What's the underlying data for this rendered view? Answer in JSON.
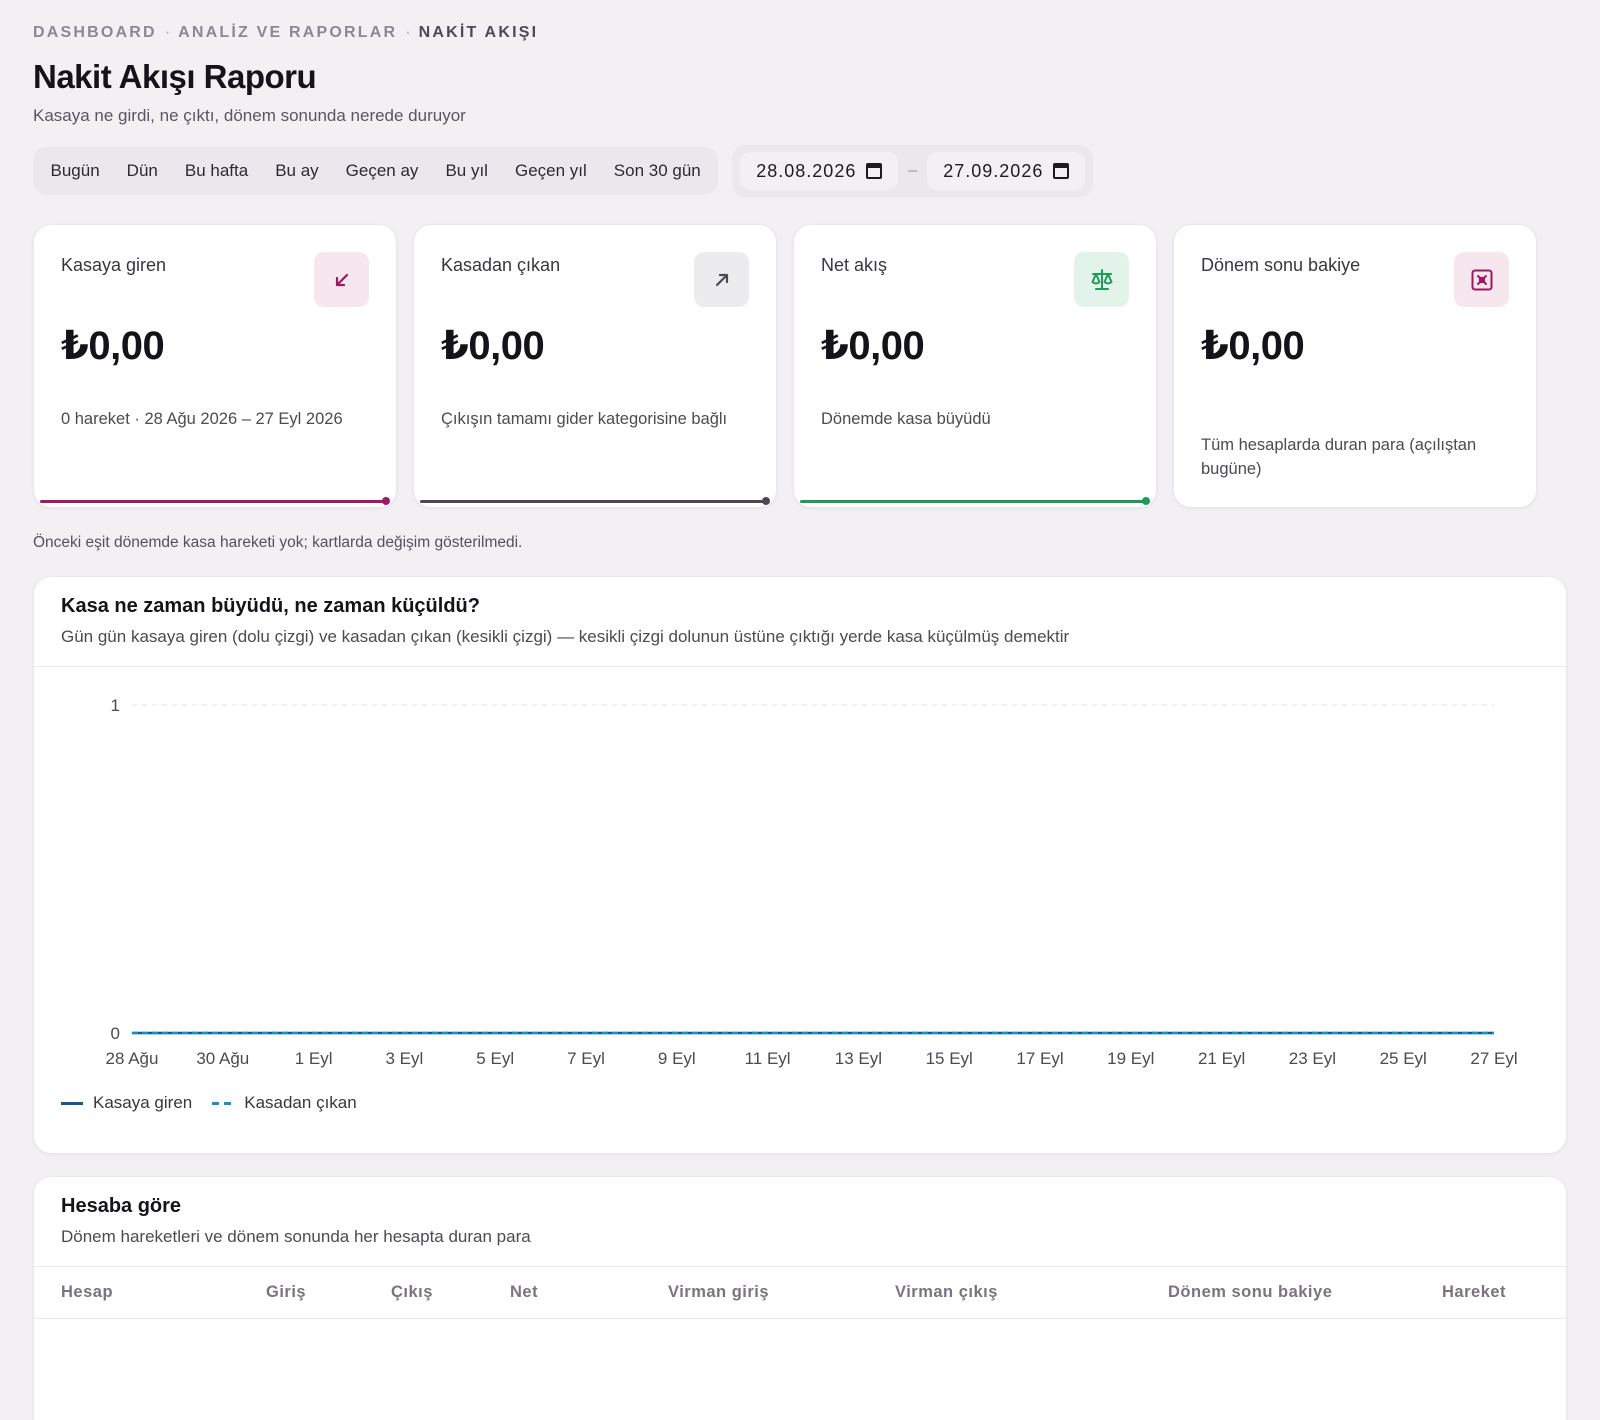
{
  "breadcrumb": [
    "DASHBOARD",
    "ANALİZ VE RAPORLAR",
    "NAKİT AKIŞI"
  ],
  "page": {
    "title": "Nakit Akışı Raporu",
    "subtitle": "Kasaya ne girdi, ne çıktı, dönem sonunda nerede duruyor"
  },
  "presets": [
    "Bugün",
    "Dün",
    "Bu hafta",
    "Bu ay",
    "Geçen ay",
    "Bu yıl",
    "Geçen yıl",
    "Son 30 gün"
  ],
  "date_range": {
    "start": "28.08.2026",
    "separator": "–",
    "end": "27.09.2026"
  },
  "kpis": [
    {
      "label": "Kasaya giren",
      "value": "₺0,00",
      "desc": "0 hareket · 28 Ağu 2026 – 27 Eyl 2026",
      "icon": "arrow-down-left-icon",
      "accent": "#9a1a63",
      "icon_bg": "#f6e7ef"
    },
    {
      "label": "Kasadan çıkan",
      "value": "₺0,00",
      "desc": "Çıkışın tamamı gider kategorisine bağlı",
      "icon": "arrow-up-right-icon",
      "accent": "#4b4753",
      "icon_bg": "#ecebee"
    },
    {
      "label": "Net akış",
      "value": "₺0,00",
      "desc": "Dönemde kasa büyüdü",
      "icon": "scale-icon",
      "accent": "#1f9a5a",
      "icon_bg": "#e2f4ea"
    },
    {
      "label": "Dönem sonu bakiye",
      "value": "₺0,00",
      "desc": "Tüm hesaplarda duran para (açılıştan bugüne)",
      "icon": "safe-box-icon",
      "accent": "#9a1a63",
      "icon_bg": "#f6e7ef"
    }
  ],
  "note": "Önceki eşit dönemde kasa hareketi yok; kartlarda değişim gösterilmedi.",
  "chart_panel": {
    "title": "Kasa ne zaman büyüdü, ne zaman küçüldü?",
    "subtitle": "Gün gün kasaya giren (dolu çizgi) ve kasadan çıkan (kesikli çizgi) — kesikli çizgi dolunun üstüne çıktığı yerde kasa küçülmüş demektir"
  },
  "chart_data": {
    "type": "line",
    "x": [
      "28 Ağu",
      "29 Ağu",
      "30 Ağu",
      "31 Ağu",
      "1 Eyl",
      "2 Eyl",
      "3 Eyl",
      "4 Eyl",
      "5 Eyl",
      "6 Eyl",
      "7 Eyl",
      "8 Eyl",
      "9 Eyl",
      "10 Eyl",
      "11 Eyl",
      "12 Eyl",
      "13 Eyl",
      "14 Eyl",
      "15 Eyl",
      "16 Eyl",
      "17 Eyl",
      "18 Eyl",
      "19 Eyl",
      "20 Eyl",
      "21 Eyl",
      "22 Eyl",
      "23 Eyl",
      "24 Eyl",
      "25 Eyl",
      "26 Eyl",
      "27 Eyl"
    ],
    "tick_labels": [
      "28 Ağu",
      "30 Ağu",
      "1 Eyl",
      "3 Eyl",
      "5 Eyl",
      "7 Eyl",
      "9 Eyl",
      "11 Eyl",
      "13 Eyl",
      "15 Eyl",
      "17 Eyl",
      "19 Eyl",
      "21 Eyl",
      "23 Eyl",
      "25 Eyl",
      "27 Eyl"
    ],
    "y_ticks": [
      "0",
      "1"
    ],
    "ylim": [
      0,
      1
    ],
    "series": [
      {
        "name": "Kasaya giren",
        "style": "solid",
        "color": "#0e5c8e",
        "values": [
          0,
          0,
          0,
          0,
          0,
          0,
          0,
          0,
          0,
          0,
          0,
          0,
          0,
          0,
          0,
          0,
          0,
          0,
          0,
          0,
          0,
          0,
          0,
          0,
          0,
          0,
          0,
          0,
          0,
          0,
          0
        ]
      },
      {
        "name": "Kasadan çıkan",
        "style": "dashed",
        "color": "#1793c2",
        "values": [
          0,
          0,
          0,
          0,
          0,
          0,
          0,
          0,
          0,
          0,
          0,
          0,
          0,
          0,
          0,
          0,
          0,
          0,
          0,
          0,
          0,
          0,
          0,
          0,
          0,
          0,
          0,
          0,
          0,
          0,
          0
        ]
      }
    ],
    "grid": true,
    "legend": "bottom-left"
  },
  "table_panel": {
    "title": "Hesaba göre",
    "subtitle": "Dönem hareketleri ve dönem sonunda her hesapta duran para",
    "columns": [
      "Hesap",
      "Giriş",
      "Çıkış",
      "Net",
      "Virman giriş",
      "Virman çıkış",
      "Dönem sonu bakiye",
      "Hareket"
    ]
  }
}
